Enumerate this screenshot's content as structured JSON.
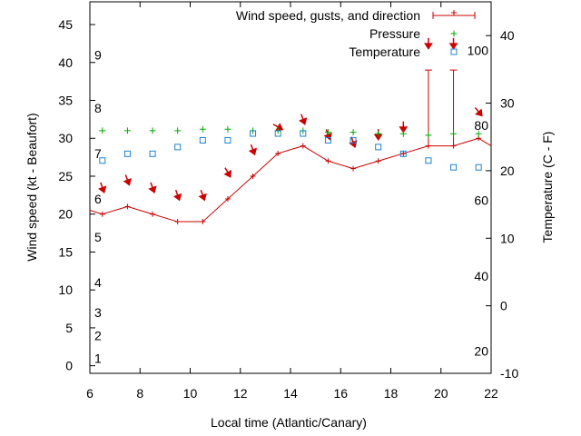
{
  "chart_data": {
    "type": "line",
    "xlabel": "Local time (Atlantic/Canary)",
    "ylabel_left": "Wind speed (kt - Beaufort)",
    "ylabel_right": "Temperature (C - F)",
    "xlim": [
      6,
      22
    ],
    "ylim_left": [
      -1,
      48
    ],
    "ylim_right_c": [
      -10,
      45
    ],
    "x_ticks": [
      "6",
      "8",
      "10",
      "12",
      "14",
      "16",
      "18",
      "20",
      "22"
    ],
    "y_left_ticks": [
      "0",
      "5",
      "10",
      "15",
      "20",
      "25",
      "30",
      "35",
      "40",
      "45"
    ],
    "y_right_c_ticks": [
      "-10",
      "0",
      "10",
      "20",
      "30",
      "40"
    ],
    "beaufort_labels": [
      {
        "label": "1",
        "kt": 1
      },
      {
        "label": "2",
        "kt": 4
      },
      {
        "label": "3",
        "kt": 7
      },
      {
        "label": "4",
        "kt": 11
      },
      {
        "label": "5",
        "kt": 17
      },
      {
        "label": "6",
        "kt": 22
      },
      {
        "label": "7",
        "kt": 28
      },
      {
        "label": "8",
        "kt": 34
      },
      {
        "label": "9",
        "kt": 41
      }
    ],
    "fahrenheit_labels": [
      {
        "label": "20",
        "c": -6.7
      },
      {
        "label": "40",
        "c": 4.4
      },
      {
        "label": "60",
        "c": 15.6
      },
      {
        "label": "80",
        "c": 26.7
      },
      {
        "label": "100",
        "c": 37.8
      }
    ],
    "legend": [
      "Wind speed, gusts, and direction",
      "Pressure",
      "Temperature"
    ],
    "legend_position": "top-right",
    "series": [
      {
        "name": "Wind speed, gusts, and direction",
        "color": "#cc0000",
        "x": [
          6,
          6.5,
          7.5,
          8.5,
          9.5,
          10.5,
          11.5,
          12.5,
          13.5,
          14.5,
          15.5,
          16.5,
          17.5,
          18.5,
          19.5,
          20.5,
          21.5,
          22
        ],
        "y": [
          20.5,
          20,
          21,
          20,
          19,
          19,
          22,
          25,
          28,
          29,
          27,
          26,
          27,
          28,
          29,
          29,
          30,
          29
        ],
        "gusts": [
          null,
          null,
          null,
          null,
          null,
          null,
          null,
          null,
          null,
          null,
          null,
          null,
          null,
          null,
          39,
          39,
          null,
          null
        ]
      },
      {
        "name": "Direction arrows",
        "color": "#cc0000",
        "x": [
          6.5,
          7.5,
          8.5,
          9.5,
          10.5,
          11.5,
          12.5,
          13.5,
          14.5,
          15.5,
          16.5,
          17.5,
          18.5,
          19.5,
          20.5,
          21.5
        ],
        "y": [
          23.5,
          24.5,
          23.5,
          22.5,
          22.5,
          25.5,
          28.5,
          31.5,
          32.5,
          30.5,
          29.5,
          30.5,
          31.5,
          42.5,
          42.5,
          33.5
        ],
        "dir_from_deg": [
          340,
          340,
          340,
          340,
          340,
          330,
          340,
          300,
          340,
          340,
          340,
          0,
          0,
          0,
          0,
          320
        ]
      },
      {
        "name": "Pressure",
        "color": "#00aa00",
        "x": [
          6.5,
          7.5,
          8.5,
          9.5,
          10.5,
          11.5,
          12.5,
          13.5,
          14.5,
          15.5,
          16.5,
          17.5,
          18.5,
          19.5,
          20.5,
          21.5
        ],
        "y": [
          31,
          31,
          31,
          31,
          31.2,
          31.2,
          31,
          31,
          31,
          30.8,
          30.8,
          30.6,
          30.6,
          30.4,
          30.6,
          30.6
        ]
      },
      {
        "name": "Temperature",
        "color": "#2080d0",
        "axis": "right",
        "x": [
          6.5,
          7.5,
          8.5,
          9.5,
          10.5,
          11.5,
          12.5,
          13.5,
          14.5,
          15.5,
          16.5,
          17.5,
          18.5,
          19.5,
          20.5,
          21.5
        ],
        "y_c": [
          21.5,
          22.5,
          22.5,
          23.5,
          24.5,
          24.5,
          25.5,
          25.5,
          25.5,
          24.5,
          24.5,
          23.5,
          22.5,
          21.5,
          20.5,
          20.5
        ]
      }
    ]
  }
}
